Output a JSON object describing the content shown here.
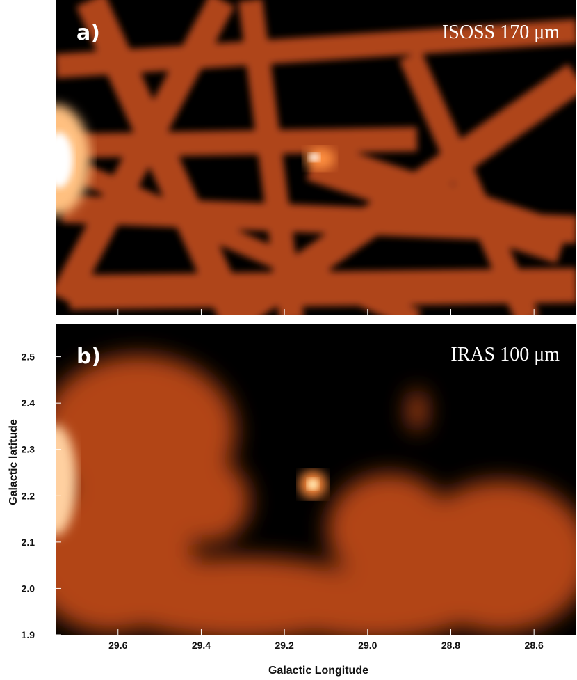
{
  "chart_data": [
    {
      "type": "image",
      "panel_label": "a)",
      "annotation": "ISOSS 170 μm",
      "xlim": [
        29.75,
        28.5
      ],
      "ylim": [
        1.9,
        2.57
      ]
    },
    {
      "type": "image",
      "panel_label": "b)",
      "annotation": "IRAS 100 μm",
      "x_label": "Galactic Longitude",
      "y_label": "Galactic latitude",
      "xlim": [
        29.75,
        28.5
      ],
      "ylim": [
        1.9,
        2.57
      ],
      "xticks": [
        29.6,
        29.4,
        29.2,
        {
          "value": 29,
          "label": "29.0"
        },
        28.8,
        28.6
      ],
      "yticks": [
        1.9,
        {
          "value": 2,
          "label": "2.0"
        },
        2.1,
        2.2,
        2.3,
        2.4,
        2.5
      ]
    }
  ]
}
